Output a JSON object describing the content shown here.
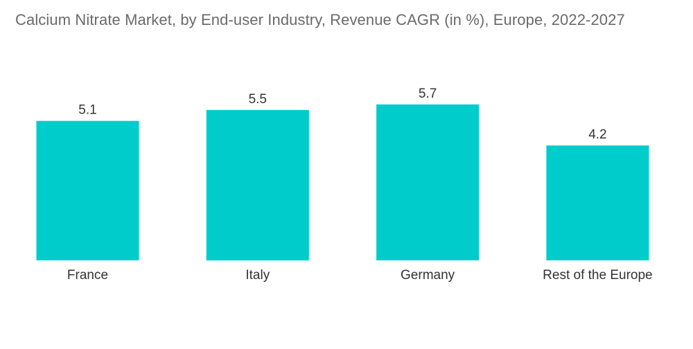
{
  "chart_data": {
    "type": "bar",
    "title": "Calcium Nitrate Market, by End-user Industry, Revenue CAGR (in %), Europe, 2022-2027",
    "categories": [
      "France",
      "Italy",
      "Germany",
      "Rest of the Europe"
    ],
    "values": [
      5.1,
      5.5,
      5.7,
      4.2
    ],
    "value_labels": [
      "5.1",
      "5.5",
      "5.7",
      "4.2"
    ],
    "xlabel": "",
    "ylabel": "",
    "ylim": [
      0,
      7
    ],
    "grid": false,
    "legend": "none",
    "colors": {
      "bar": "#00cccc",
      "title": "#6a6a6a",
      "text": "#333333"
    }
  }
}
